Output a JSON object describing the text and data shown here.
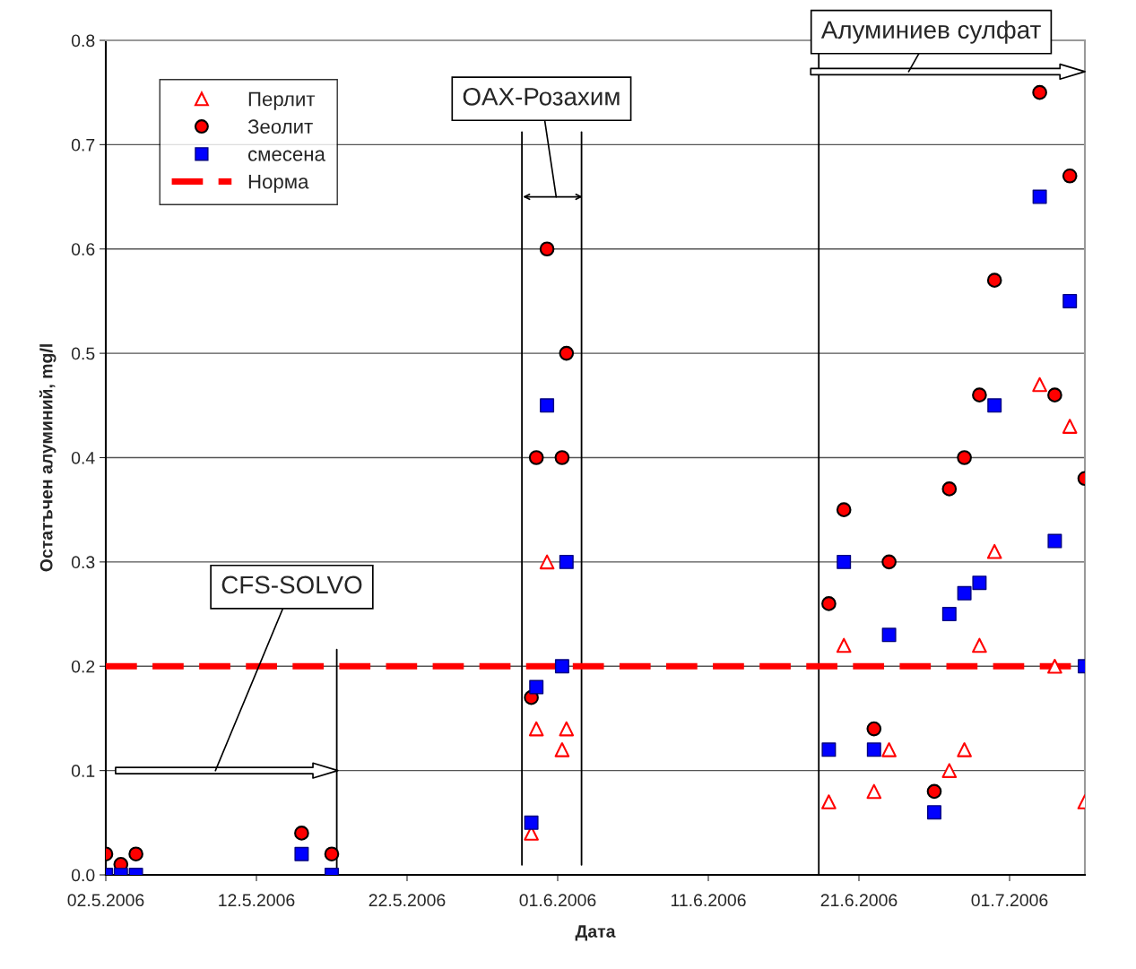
{
  "chart_data": {
    "type": "scatter",
    "xlabel": "Дата",
    "ylabel": "Остатъчен алуминий, mg/l",
    "xlim": [
      "2006-05-02",
      "2006-07-06"
    ],
    "xticks": [
      {
        "value": "2006-05-02",
        "label": "02.5.2006"
      },
      {
        "value": "2006-05-12",
        "label": "12.5.2006"
      },
      {
        "value": "2006-05-22",
        "label": "22.5.2006"
      },
      {
        "value": "2006-06-01",
        "label": "01.6.2006"
      },
      {
        "value": "2006-06-11",
        "label": "11.6.2006"
      },
      {
        "value": "2006-06-21",
        "label": "21.6.2006"
      },
      {
        "value": "2006-07-01",
        "label": "01.7.2006"
      }
    ],
    "ylim": [
      0,
      0.8
    ],
    "yticks": [
      {
        "value": 0,
        "label": "0.0"
      },
      0.1,
      0.2,
      0.3,
      0.4,
      0.5,
      0.6,
      0.7,
      0.8
    ],
    "grid": "y",
    "legend": "top left",
    "series": [
      {
        "name": "Перлит",
        "color": "#ff0000",
        "marker": "triangle",
        "x": [
          "2006-05-30T06:00",
          "2006-05-30T14:00",
          "2006-05-31T07:00",
          "2006-06-01T07:00",
          "2006-06-01T14:00",
          "2006-06-19",
          "2006-06-20",
          "2006-06-22",
          "2006-06-23",
          "2006-06-27",
          "2006-06-28",
          "2006-06-29",
          "2006-06-30",
          "2006-07-03",
          "2006-07-04",
          "2006-07-05",
          "2006-07-06"
        ],
        "values": [
          0.04,
          0.14,
          0.3,
          0.12,
          0.14,
          0.07,
          0.22,
          0.08,
          0.12,
          0.1,
          0.12,
          0.22,
          0.31,
          0.47,
          0.2,
          0.43,
          0.07
        ]
      },
      {
        "name": "Зеолит",
        "color": "#ff0000",
        "marker": "circle",
        "x": [
          "2006-05-02",
          "2006-05-03",
          "2006-05-04",
          "2006-05-15",
          "2006-05-17",
          "2006-05-30T06:00",
          "2006-05-30T14:00",
          "2006-05-31T07:00",
          "2006-06-01T07:00",
          "2006-06-01T14:00",
          "2006-06-19",
          "2006-06-20",
          "2006-06-22",
          "2006-06-23",
          "2006-06-26",
          "2006-06-27",
          "2006-06-28",
          "2006-06-29",
          "2006-06-30",
          "2006-07-03",
          "2006-07-04",
          "2006-07-05",
          "2006-07-06"
        ],
        "values": [
          0.02,
          0.01,
          0.02,
          0.04,
          0.02,
          0.17,
          0.4,
          0.6,
          0.4,
          0.5,
          0.26,
          0.35,
          0.14,
          0.3,
          0.08,
          0.37,
          0.4,
          0.46,
          0.57,
          0.75,
          0.46,
          0.67,
          0.38
        ]
      },
      {
        "name": "смесена",
        "color": "#0000ff",
        "marker": "square",
        "x": [
          "2006-05-02",
          "2006-05-03",
          "2006-05-04",
          "2006-05-15",
          "2006-05-17",
          "2006-05-30T06:00",
          "2006-05-30T14:00",
          "2006-05-31T07:00",
          "2006-06-01T07:00",
          "2006-06-01T14:00",
          "2006-06-19",
          "2006-06-20",
          "2006-06-22",
          "2006-06-23",
          "2006-06-26",
          "2006-06-27",
          "2006-06-28",
          "2006-06-29",
          "2006-06-30",
          "2006-07-03",
          "2006-07-04",
          "2006-07-05",
          "2006-07-06"
        ],
        "values": [
          0.0,
          0.0,
          0.0,
          0.02,
          0.0,
          0.05,
          0.18,
          0.45,
          0.2,
          0.3,
          0.12,
          0.3,
          0.12,
          0.23,
          0.06,
          0.25,
          0.27,
          0.28,
          0.45,
          0.65,
          0.32,
          0.55,
          0.2
        ]
      }
    ],
    "ref_lines": [
      {
        "axis": "y",
        "value": 0.2,
        "label": "Норма",
        "color": "#ff0000",
        "line_style": "dashed"
      },
      {
        "axis": "x",
        "value": "2006-05-17T08:00",
        "color": "#000000"
      },
      {
        "axis": "x",
        "value": "2006-05-29T15:00",
        "color": "#000000"
      },
      {
        "axis": "x",
        "value": "2006-06-02T14:00",
        "color": "#000000"
      },
      {
        "axis": "x",
        "value": "2006-06-18T08:00",
        "color": "#000000"
      }
    ],
    "annotations": [
      "CFS-SOLVO",
      "OAX-Розахим",
      "Алуминиев сулфат"
    ]
  }
}
